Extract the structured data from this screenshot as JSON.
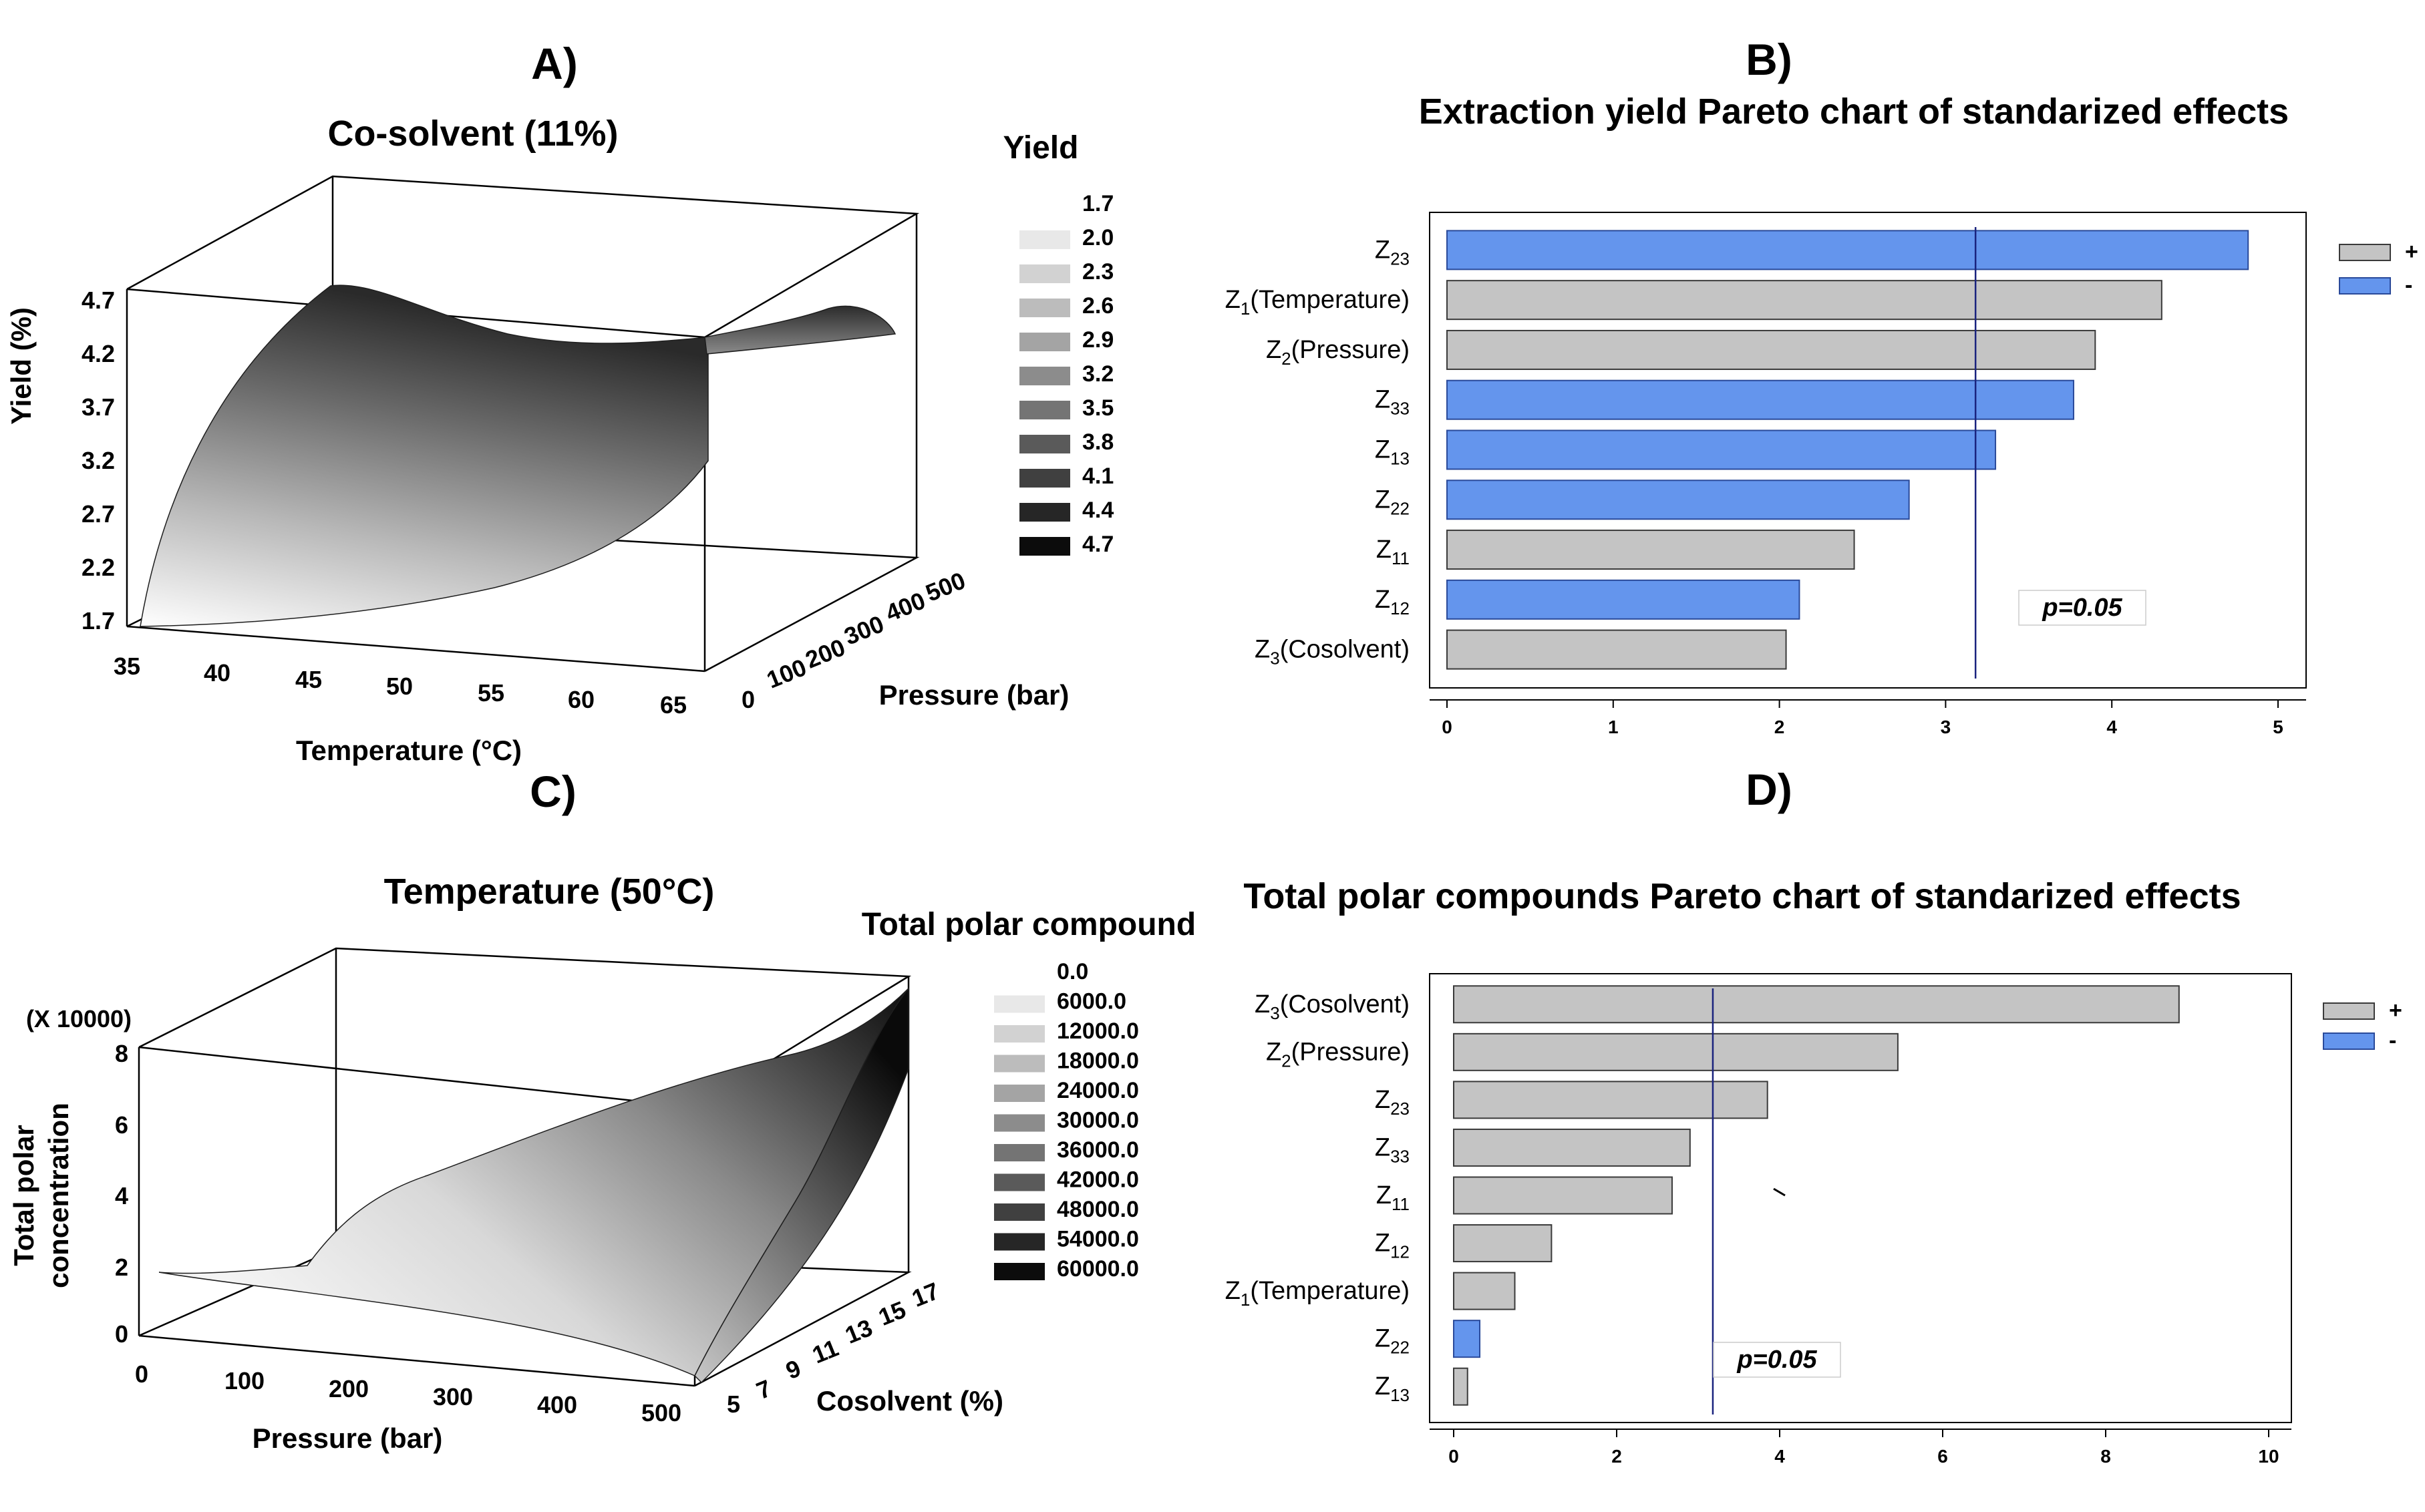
{
  "chart_data": [
    {
      "panel": "A)",
      "type": "surface3d",
      "title": "Co-solvent (11%)",
      "zlabel": "Yield (%)",
      "xlabel": "Temperature (°C)",
      "ylabel": "Pressure (bar)",
      "z_ticks": [
        "4.7",
        "4.2",
        "3.7",
        "3.2",
        "2.7",
        "2.2",
        "1.7"
      ],
      "x_ticks": [
        "35",
        "40",
        "45",
        "50",
        "55",
        "60",
        "65"
      ],
      "y_ticks": [
        "0",
        "100",
        "200",
        "300",
        "400",
        "500"
      ],
      "zlim": [
        1.7,
        4.7
      ],
      "legend_title": "Yield",
      "legend": [
        {
          "label": "1.7",
          "color": "#ffffff"
        },
        {
          "label": "2.0",
          "color": "#e8e8e8"
        },
        {
          "label": "2.3",
          "color": "#d2d2d2"
        },
        {
          "label": "2.6",
          "color": "#bcbcbc"
        },
        {
          "label": "2.9",
          "color": "#a4a4a4"
        },
        {
          "label": "3.2",
          "color": "#8c8c8c"
        },
        {
          "label": "3.5",
          "color": "#747474"
        },
        {
          "label": "3.8",
          "color": "#5a5a5a"
        },
        {
          "label": "4.1",
          "color": "#404040"
        },
        {
          "label": "4.4",
          "color": "#262626"
        },
        {
          "label": "4.7",
          "color": "#0c0c0c"
        }
      ]
    },
    {
      "panel": "B)",
      "type": "bar",
      "orientation": "horizontal",
      "title": "Extraction yield Pareto chart of standarized effects",
      "xlim": [
        0,
        5
      ],
      "x_ticks": [
        "0",
        "1",
        "2",
        "3",
        "4",
        "5"
      ],
      "threshold": 3.18,
      "threshold_label": "p=0.05",
      "legend": [
        {
          "label": "+",
          "color": "#c4c4c4"
        },
        {
          "label": "-",
          "color": "#6495ed"
        }
      ],
      "bars": [
        {
          "main": "Z",
          "sub": "23",
          "suffix": "",
          "value": 4.82,
          "sign": "-"
        },
        {
          "main": "Z",
          "sub": "1",
          "suffix": "(Temperature)",
          "value": 4.3,
          "sign": "+"
        },
        {
          "main": "Z",
          "sub": "2",
          "suffix": "(Pressure)",
          "value": 3.9,
          "sign": "+"
        },
        {
          "main": "Z",
          "sub": "33",
          "suffix": "",
          "value": 3.77,
          "sign": "-"
        },
        {
          "main": "Z",
          "sub": "13",
          "suffix": "",
          "value": 3.3,
          "sign": "-"
        },
        {
          "main": "Z",
          "sub": "22",
          "suffix": "",
          "value": 2.78,
          "sign": "-"
        },
        {
          "main": "Z",
          "sub": "11",
          "suffix": "",
          "value": 2.45,
          "sign": "+"
        },
        {
          "main": "Z",
          "sub": "12",
          "suffix": "",
          "value": 2.12,
          "sign": "-"
        },
        {
          "main": "Z",
          "sub": "3",
          "suffix": "(Cosolvent)",
          "value": 2.04,
          "sign": "+"
        }
      ]
    },
    {
      "panel": "C)",
      "type": "surface3d",
      "title": "Temperature (50°C)",
      "zlabel_lines": [
        "Total polar",
        "concentration"
      ],
      "zscale": "(X 10000)",
      "xlabel": "Pressure  (bar)",
      "ylabel": "Cosolvent  (%)",
      "z_ticks": [
        "8",
        "6",
        "4",
        "2",
        "0"
      ],
      "x_ticks": [
        "0",
        "100",
        "200",
        "300",
        "400",
        "500"
      ],
      "y_ticks": [
        "5",
        "7",
        "9",
        "11",
        "13",
        "15",
        "17"
      ],
      "zlim": [
        0,
        8
      ],
      "legend_title": "Total polar compound",
      "legend": [
        {
          "label": "0.0",
          "color": "#ffffff"
        },
        {
          "label": "6000.0",
          "color": "#e8e8e8"
        },
        {
          "label": "12000.0",
          "color": "#d2d2d2"
        },
        {
          "label": "18000.0",
          "color": "#bcbcbc"
        },
        {
          "label": "24000.0",
          "color": "#a4a4a4"
        },
        {
          "label": "30000.0",
          "color": "#8c8c8c"
        },
        {
          "label": "36000.0",
          "color": "#747474"
        },
        {
          "label": "42000.0",
          "color": "#5a5a5a"
        },
        {
          "label": "48000.0",
          "color": "#404040"
        },
        {
          "label": "54000.0",
          "color": "#262626"
        },
        {
          "label": "60000.0",
          "color": "#0c0c0c"
        }
      ]
    },
    {
      "panel": "D)",
      "type": "bar",
      "orientation": "horizontal",
      "title": "Total polar compounds Pareto chart of standarized effects",
      "xlim": [
        0,
        10
      ],
      "x_ticks": [
        "0",
        "2",
        "4",
        "6",
        "8",
        "10"
      ],
      "threshold": 3.18,
      "threshold_label": "p=0.05",
      "legend": [
        {
          "label": "+",
          "color": "#c4c4c4"
        },
        {
          "label": "-",
          "color": "#6495ed"
        }
      ],
      "bars": [
        {
          "main": "Z",
          "sub": "3",
          "suffix": "(Cosolvent)",
          "value": 8.9,
          "sign": "+"
        },
        {
          "main": "Z",
          "sub": "2",
          "suffix": "(Pressure)",
          "value": 5.45,
          "sign": "+"
        },
        {
          "main": "Z",
          "sub": "23",
          "suffix": "",
          "value": 3.85,
          "sign": "+"
        },
        {
          "main": "Z",
          "sub": "33",
          "suffix": "",
          "value": 2.9,
          "sign": "+"
        },
        {
          "main": "Z",
          "sub": "11",
          "suffix": "",
          "value": 2.68,
          "sign": "+"
        },
        {
          "main": "Z",
          "sub": "12",
          "suffix": "",
          "value": 1.2,
          "sign": "+"
        },
        {
          "main": "Z",
          "sub": "1",
          "suffix": "(Temperature)",
          "value": 0.75,
          "sign": "+"
        },
        {
          "main": "Z",
          "sub": "22",
          "suffix": "",
          "value": 0.32,
          "sign": "-"
        },
        {
          "main": "Z",
          "sub": "13",
          "suffix": "",
          "value": 0.17,
          "sign": "+"
        }
      ]
    }
  ]
}
